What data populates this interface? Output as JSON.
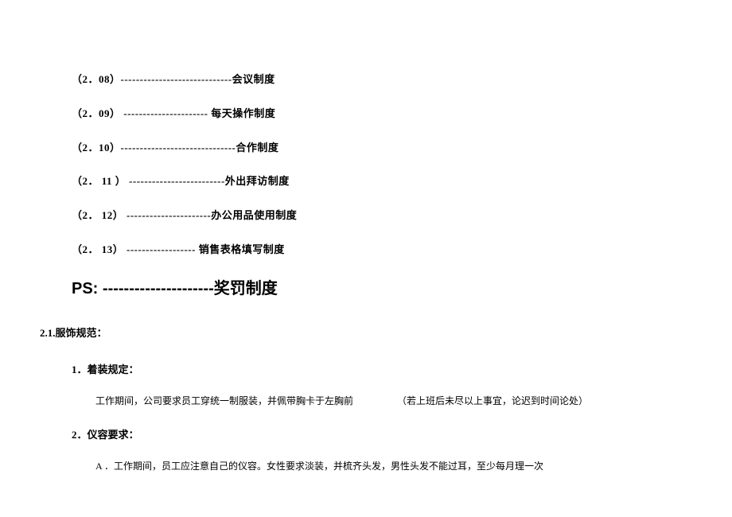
{
  "toc": [
    {
      "num": "（2．08）",
      "dashes": "-----------------------------",
      "label": "会议制度"
    },
    {
      "num": "（2．09）",
      "dashes": " ----------------------",
      "label": " 每天操作制度"
    },
    {
      "num": "（2．10）",
      "dashes": "------------------------------",
      "label": "合作制度"
    },
    {
      "num": "（2． 11 ）",
      "dashes": " -------------------------",
      "label": "外出拜访制度"
    },
    {
      "num": "（2． 12）",
      "dashes": " ----------------------",
      "label": "办公用品使用制度"
    },
    {
      "num": "（2． 13）",
      "dashes": " ------------------",
      "label": " 销售表格填写制度"
    }
  ],
  "ps": {
    "prefix": "PS: ",
    "dashes": "---------------------",
    "label": "奖罚制度"
  },
  "section": {
    "number": "2.1.",
    "title": "服饰规范："
  },
  "subsections": [
    {
      "num": "1．",
      "title": "着装规定：",
      "body": "工作期间，公司要求员工穿统一制服装，并佩带胸卡于左胸前",
      "note": "（若上班后未尽以上事宜，论迟到时间论处）"
    },
    {
      "num": "2．",
      "title": "仪容要求：",
      "sub_prefix": "A ．",
      "sub_body": "工作期间，员工应注意自己的仪容。女性要求淡装，并梳齐头发，男性头发不能过耳，至少每月理一次"
    }
  ]
}
